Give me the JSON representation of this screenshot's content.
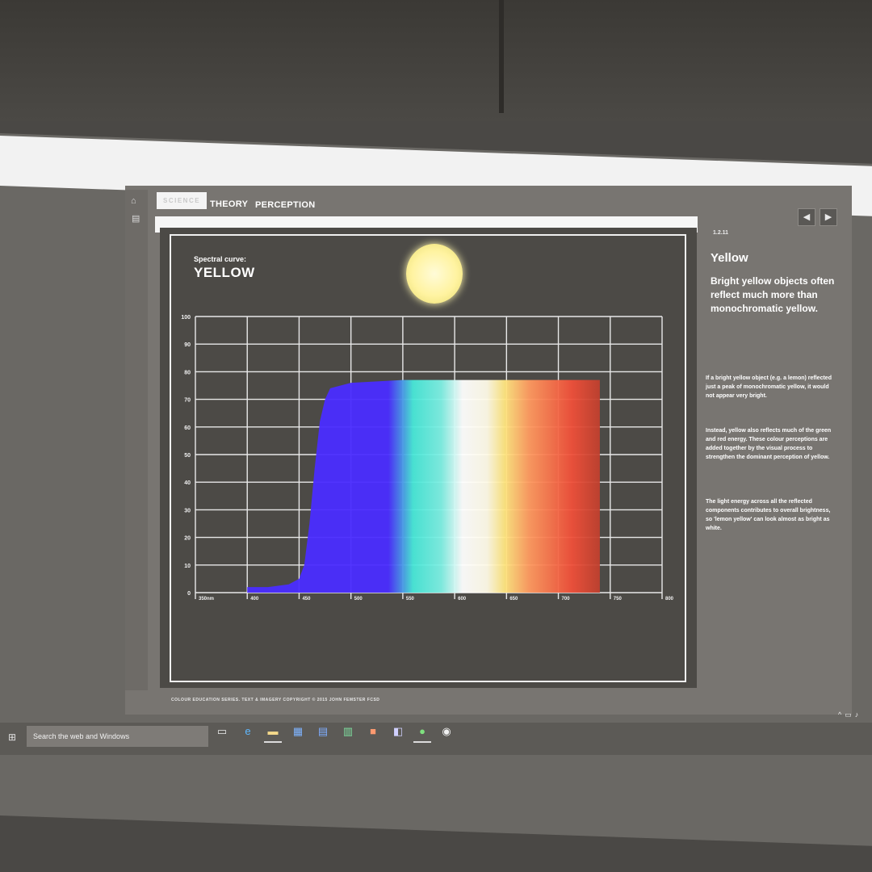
{
  "tabs": [
    "SCIENCE",
    "THEORY",
    "PERCEPTION"
  ],
  "side_nav_icons": [
    "home-icon",
    "menu-icon"
  ],
  "nav_buttons": [
    "previous-icon",
    "next-icon"
  ],
  "slide": {
    "label": "Spectral curve:",
    "title": "YELLOW",
    "footer": "COLOUR EDUCATION SERIES.  TEXT & IMAGERY COPYRIGHT © 2015 JOHN FEMSTER FCSD"
  },
  "panel": {
    "number": "1.2.11",
    "title": "Yellow",
    "lead": "Bright yellow objects often reflect much more than monochromatic yellow.",
    "paragraphs": [
      "If a bright yellow object (e.g. a lemon) reflected just a peak of monochromatic yellow, it would not appear very bright.",
      "Instead, yellow also reflects much of the green and red energy. These colour perceptions are added together by the visual process to strengthen the dominant perception of yellow.",
      "The light energy across all the reflected components contributes to overall brightness, so 'lemon yellow' can look almost as bright as white."
    ]
  },
  "taskbar": {
    "search_placeholder": "Search the web and Windows",
    "icons": [
      "task-view-icon",
      "edge-icon",
      "file-explorer-icon",
      "store-icon",
      "word-icon",
      "excel-icon",
      "powerpoint-icon",
      "onenote-icon",
      "media-icon",
      "chrome-icon"
    ]
  },
  "chart_data": {
    "type": "area",
    "title": "YELLOW",
    "xlabel": "",
    "ylabel": "",
    "x_ticks": [
      "350nm",
      "400",
      "450",
      "500",
      "550",
      "600",
      "650",
      "700",
      "750",
      "800"
    ],
    "y_ticks": [
      "0",
      "10",
      "20",
      "30",
      "40",
      "50",
      "60",
      "70",
      "80",
      "90",
      "100"
    ],
    "xlim": [
      350,
      800
    ],
    "ylim": [
      0,
      100
    ],
    "grid": true,
    "series": [
      {
        "x": [
          400,
          420,
          440,
          450,
          455,
          460,
          465,
          470,
          475,
          480,
          490,
          500,
          550,
          600,
          650,
          700,
          740
        ],
        "y": [
          2,
          2,
          3,
          5,
          10,
          25,
          45,
          62,
          70,
          74,
          75,
          76,
          77,
          77,
          77,
          77,
          77
        ]
      }
    ],
    "colors": [
      "#4a2cff",
      "#48e8d8",
      "#ffffff",
      "#ffe680",
      "#ff9a60",
      "#f0503a"
    ]
  }
}
